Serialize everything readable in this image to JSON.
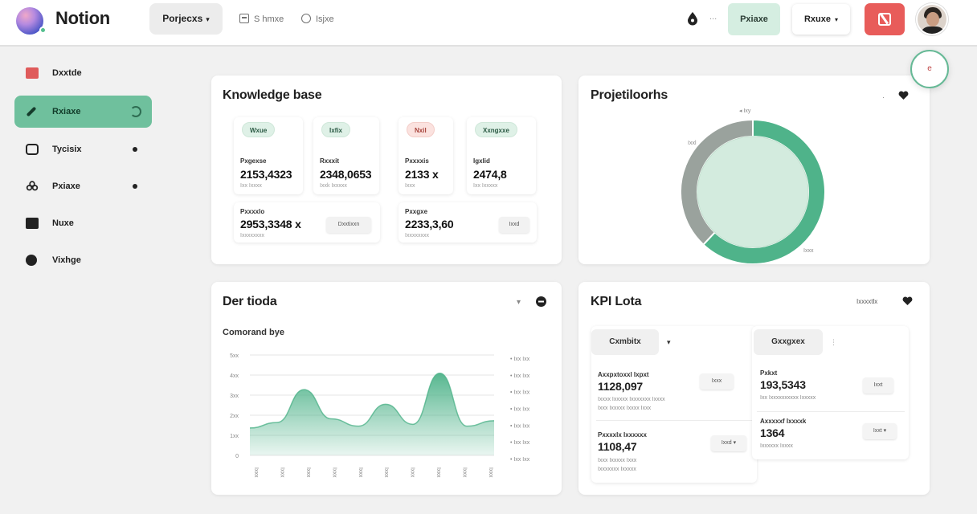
{
  "app": {
    "name": "Notion"
  },
  "header": {
    "project_select": "Porjecxs",
    "tool_1": "S hmxe",
    "tool_2": "Isjxe",
    "separator": "...",
    "status_chip": "Pxiaxe",
    "share_button": "Rxuxe",
    "float_button": "e"
  },
  "sidebar": {
    "items": [
      {
        "label": "Dxxtde",
        "icon": "red-flag-icon",
        "active": false
      },
      {
        "label": "Rxiaxe",
        "icon": "pen-icon",
        "active": true
      },
      {
        "label": "Tycisix",
        "icon": "card-icon",
        "active": false
      },
      {
        "label": "Pxiaxe",
        "icon": "club-icon",
        "active": false
      },
      {
        "label": "Nuxe",
        "icon": "folder-icon",
        "active": false
      },
      {
        "label": "Vixhge",
        "icon": "globe-icon",
        "active": false
      }
    ]
  },
  "knowledge_base": {
    "title": "Knowledge base",
    "tiles": [
      {
        "tag": "Wxue",
        "label": "Pxgexse",
        "value": "2153,4323",
        "sub": "Ixx Ixxxx"
      },
      {
        "tag": "Ixfix",
        "label": "Rxxxit",
        "value": "2348,0653",
        "sub": "Ixxk Ixxxxx"
      },
      {
        "tag": "Nxil",
        "label": "Pxxxxis",
        "value": "2133 x",
        "sub": "Ixxx"
      },
      {
        "tag": "Xxngxxe",
        "label": "Igxlid",
        "value": "2474,8",
        "sub": "Ixx Ixxxxx"
      }
    ],
    "rows": [
      {
        "label": "Pxxxxlo",
        "value": "2953,3348 x",
        "sub": "Ixxxxxxxx",
        "button": "Dxxtixxn"
      },
      {
        "label": "Pxxgxe",
        "value": "2233,3,60",
        "sub": "Ixxxxxxxx",
        "button": "Ixxd"
      }
    ]
  },
  "projection": {
    "title": "Projetiloorhs",
    "legend_label": "Ixy",
    "label_left": "Ixxl",
    "label_bottom": "Ixxx",
    "chart_data": {
      "type": "pie",
      "slices": [
        {
          "value": 62,
          "color": "#4fb38a"
        },
        {
          "value": 38,
          "color": "#9aa29d"
        }
      ]
    }
  },
  "trend": {
    "title": "Der tioda",
    "subtitle": "Comorand bye",
    "chart_data": {
      "type": "area",
      "x": [
        "Ixxx",
        "Ixxx",
        "Ixxx",
        "Ixxx",
        "Ixxx",
        "Ixxx",
        "Ixxx",
        "Ixxx",
        "Ixxx",
        "Ixxx"
      ],
      "y_ticks": [
        "0",
        "1xx",
        "2xx",
        "3xx",
        "4xx",
        "5xx"
      ],
      "right_ticks": [
        "Ixx Ixx",
        "Ixx Ixx",
        "Ixx Ixx",
        "Ixx Ixx",
        "Ixx Ixx",
        "Ixx Ixx",
        "Ixx Ixx"
      ],
      "values": [
        1.5,
        1.8,
        3.6,
        2.0,
        1.6,
        2.8,
        1.7,
        4.5,
        1.6,
        1.9
      ],
      "ylim": [
        0,
        5.5
      ],
      "grid": true,
      "color": "#4fb38a"
    }
  },
  "kpi": {
    "title": "KPI Lota",
    "header_link": "Ixxxxtlx",
    "left": {
      "chip": "Cxmbitx",
      "items": [
        {
          "label": "Axxpxtoxxl Ixpxt",
          "value": "1128,097",
          "sub1": "Ixxxx Ixxxxx Ixxxxxxx Ixxxx",
          "sub2": "Ixxx Ixxxxx Ixxxx Ixxx",
          "button": "Ixxx"
        },
        {
          "label": "Pxxxxlx Ixxxxxx",
          "value": "1108,47",
          "sub1": "Ixxx Ixxxxx Ixxx",
          "sub2": "Ixxxxxxx Ixxxxx",
          "button": "Ixxd"
        }
      ]
    },
    "right": {
      "chip": "Gxxgxex",
      "items": [
        {
          "label": "Pxkxt",
          "value": "193,5343",
          "sub1": "Ixx Ixxxxxxxxxx Ixxxxx",
          "sub2": "",
          "button": "Ixxt"
        },
        {
          "label": "Axxxxxf Ixxxxk",
          "value": "1364",
          "sub1": "Ixxxxxx Ixxxx",
          "sub2": "",
          "button": "Ixxt"
        }
      ]
    }
  }
}
